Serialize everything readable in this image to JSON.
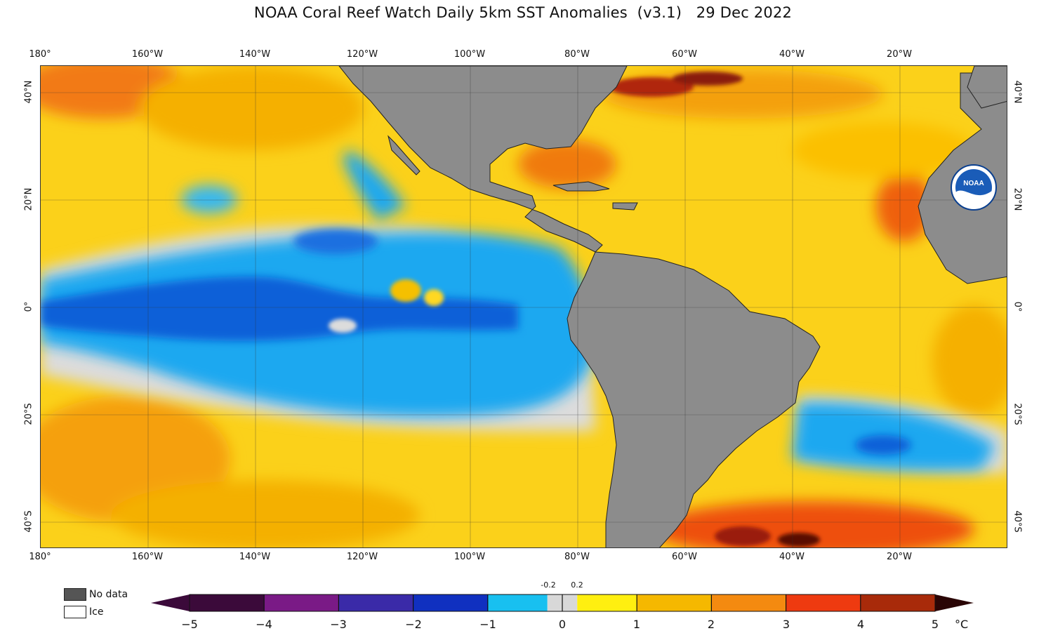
{
  "title": "NOAA Coral Reef Watch Daily 5km SST Anomalies  (v3.1)   29 Dec 2022",
  "axes": {
    "top_lon_labels": [
      "180°",
      "160°W",
      "140°W",
      "120°W",
      "100°W",
      "80°W",
      "60°W",
      "40°W",
      "20°W"
    ],
    "bottom_lon_labels": [
      "180°",
      "160°W",
      "140°W",
      "120°W",
      "100°W",
      "80°W",
      "60°W",
      "40°W",
      "20°W"
    ],
    "left_lat_labels": [
      "40°N",
      "20°N",
      "0°",
      "20°S",
      "40°S"
    ],
    "right_lat_labels": [
      "40°N",
      "20°N",
      "0°",
      "20°S",
      "40°S"
    ]
  },
  "legend": {
    "nodata_label": "No data",
    "ice_label": "Ice",
    "nodata_color": "#555555",
    "ice_color": "#ffffff"
  },
  "colorbar": {
    "tick_labels": [
      "−5",
      "−4",
      "−3",
      "−2",
      "−1",
      "0",
      "1",
      "2",
      "3",
      "4",
      "5"
    ],
    "small_labels": [
      "-0.2",
      "0.2"
    ],
    "unit": "°C",
    "colors": {
      "c_m5": "#3b0a3a",
      "c_m4": "#7a1a86",
      "c_m3": "#3a2aa8",
      "c_m2": "#1030c0",
      "c_m1": "#1878f0",
      "c_m0": "#18c0f0",
      "c_0": "#d8d8d8",
      "c_p0": "#ffef10",
      "c_p1": "#f5b800",
      "c_p2": "#f48a10",
      "c_p3": "#ee3a10",
      "c_p4": "#a82a0a",
      "c_p5": "#2a0505"
    }
  },
  "map": {
    "land_color": "#8c8c8c",
    "warm_color": "#fbd11a",
    "cool_color": "#1ba8f0",
    "deep_cool_color": "#1060d8",
    "neutral_color": "#dcdcdc",
    "hot_color": "#f0701a",
    "logo_text": "NOAA"
  }
}
